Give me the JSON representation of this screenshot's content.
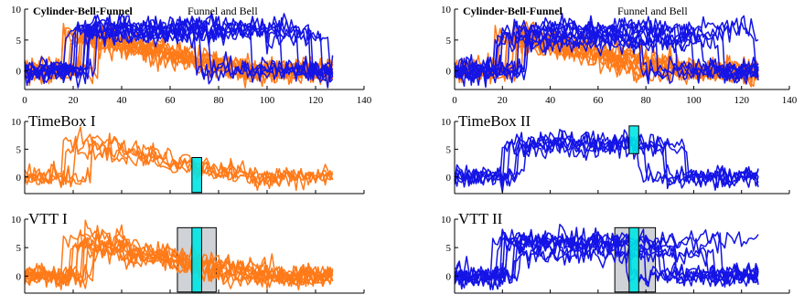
{
  "chart_data": [
    {
      "type": "line",
      "title": "Cylinder-Bell-Funnel",
      "subtitle": "Funnel and Bell",
      "xlim": [
        0,
        140
      ],
      "ylim": [
        -3,
        10
      ],
      "x_ticks": [
        "0",
        "20",
        "40",
        "60",
        "80",
        "100",
        "120",
        "140"
      ],
      "y_ticks": [
        "0",
        "5",
        "10"
      ],
      "series": [
        {
          "shape": "bell",
          "color": "#ff7a18",
          "count": 10
        },
        {
          "shape": "funnel",
          "color": "#1414e6",
          "count": 10
        }
      ]
    },
    {
      "type": "line",
      "title": "TimeBox I",
      "xlim": [
        0,
        140
      ],
      "ylim": [
        -3,
        10
      ],
      "y_ticks": [
        "0",
        "5",
        "10"
      ],
      "series": [
        {
          "shape": "bell",
          "color": "#ff7a18",
          "count": 5
        }
      ],
      "highlight": {
        "kind": "timebox",
        "x": [
          69,
          73
        ],
        "color": "#00e5e5"
      }
    },
    {
      "type": "line",
      "title": "VTT I",
      "xlim": [
        0,
        140
      ],
      "ylim": [
        -3,
        10
      ],
      "y_ticks": [
        "0",
        "5",
        "10"
      ],
      "series": [
        {
          "shape": "bell",
          "color": "#ff7a18",
          "count": 10
        }
      ],
      "highlight": {
        "kind": "vtt",
        "x": [
          69,
          73
        ],
        "window": [
          63,
          79
        ],
        "color": "#00e5e5"
      }
    },
    {
      "type": "line",
      "title": "Cylinder-Bell-Funnel",
      "subtitle": "Funnel and Bell",
      "xlim": [
        0,
        140
      ],
      "ylim": [
        -3,
        10
      ],
      "x_ticks": [
        "0",
        "20",
        "40",
        "60",
        "80",
        "100",
        "120",
        "140"
      ],
      "y_ticks": [
        "0",
        "5",
        "10"
      ],
      "series": [
        {
          "shape": "bell",
          "color": "#ff7a18",
          "count": 10
        },
        {
          "shape": "funnel",
          "color": "#1414e6",
          "count": 10
        }
      ]
    },
    {
      "type": "line",
      "title": "TimeBox II",
      "xlim": [
        0,
        140
      ],
      "ylim": [
        -3,
        10
      ],
      "y_ticks": [
        "0",
        "5",
        "10"
      ],
      "series": [
        {
          "shape": "funnel",
          "color": "#1414e6",
          "count": 6
        }
      ],
      "highlight": {
        "kind": "timebox",
        "x": [
          73,
          77
        ],
        "color": "#00e5e5"
      }
    },
    {
      "type": "line",
      "title": "VTT II",
      "xlim": [
        0,
        140
      ],
      "ylim": [
        -3,
        10
      ],
      "y_ticks": [
        "0",
        "5",
        "10"
      ],
      "series": [
        {
          "shape": "funnel",
          "color": "#1414e6",
          "count": 10
        }
      ],
      "highlight": {
        "kind": "vtt",
        "x": [
          73,
          77
        ],
        "window": [
          67,
          84
        ],
        "color": "#00e5e5"
      }
    }
  ]
}
